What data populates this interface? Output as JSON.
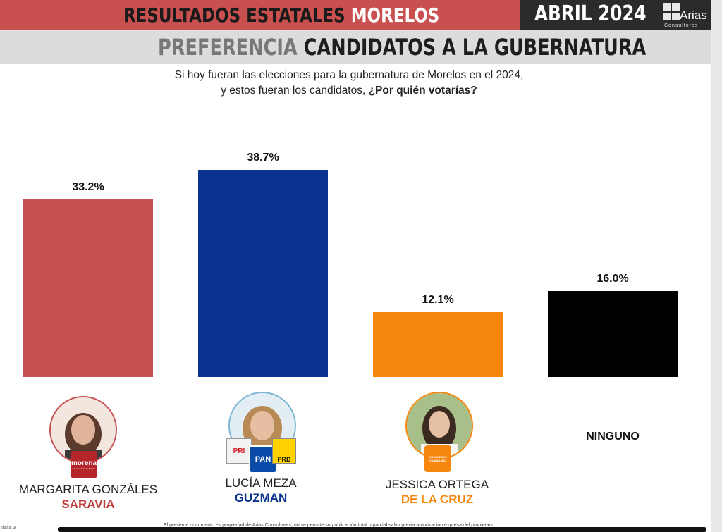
{
  "header": {
    "title_part1": "RESULTADOS ESTATALES",
    "title_part2": "MORELOS",
    "date": "ABRIL 2024",
    "logo_text": "Arias",
    "logo_sub": "Consultores",
    "subtitle_part1": "PREFERENCIA",
    "subtitle_part2": "CANDIDATOS A LA GUBERNATURA"
  },
  "question": {
    "line1": "Si hoy fueran las elecciones para la gubernatura de Morelos en el 2024,",
    "line2_plain": "y estos fueran los candidatos, ",
    "line2_bold": "¿Por quién votarías?"
  },
  "chart_data": {
    "type": "bar",
    "categories": [
      "MARGARITA GONZÁLES SARAVIA",
      "LUCÍA MEZA GUZMAN",
      "JESSICA ORTEGA DE LA CRUZ",
      "NINGUNO"
    ],
    "values": [
      33.2,
      38.7,
      12.1,
      16.0
    ],
    "value_labels": [
      "33.2%",
      "38.7%",
      "12.1%",
      "16.0%"
    ],
    "colors": [
      "#c75151",
      "#0a338f",
      "#f7860e",
      "#000000"
    ],
    "ylim": [
      0,
      38.7
    ],
    "grid": false
  },
  "candidates": [
    {
      "first": "MARGARITA GONZÁLES",
      "last": "SARAVIA",
      "last_color": "#c0413f",
      "party": "morena",
      "party_sub": "La esperanza de México"
    },
    {
      "first": "LUCÍA MEZA",
      "last": "GUZMAN",
      "last_color": "#0a338f",
      "parties": [
        "PRI",
        "PAN",
        "PRD"
      ]
    },
    {
      "first": "JESSICA ORTEGA",
      "last": "DE LA CRUZ",
      "last_color": "#f7860e",
      "party": "MOVIMIENTO CIUDADANO"
    },
    {
      "first": "NINGUNO"
    }
  ],
  "footer": {
    "note": "El presente documento es propiedad de Arias Consultores, no se permite su publicación total o parcial salvo previa autorización expresa del propietario.",
    "page": "Ilaiia 3"
  }
}
